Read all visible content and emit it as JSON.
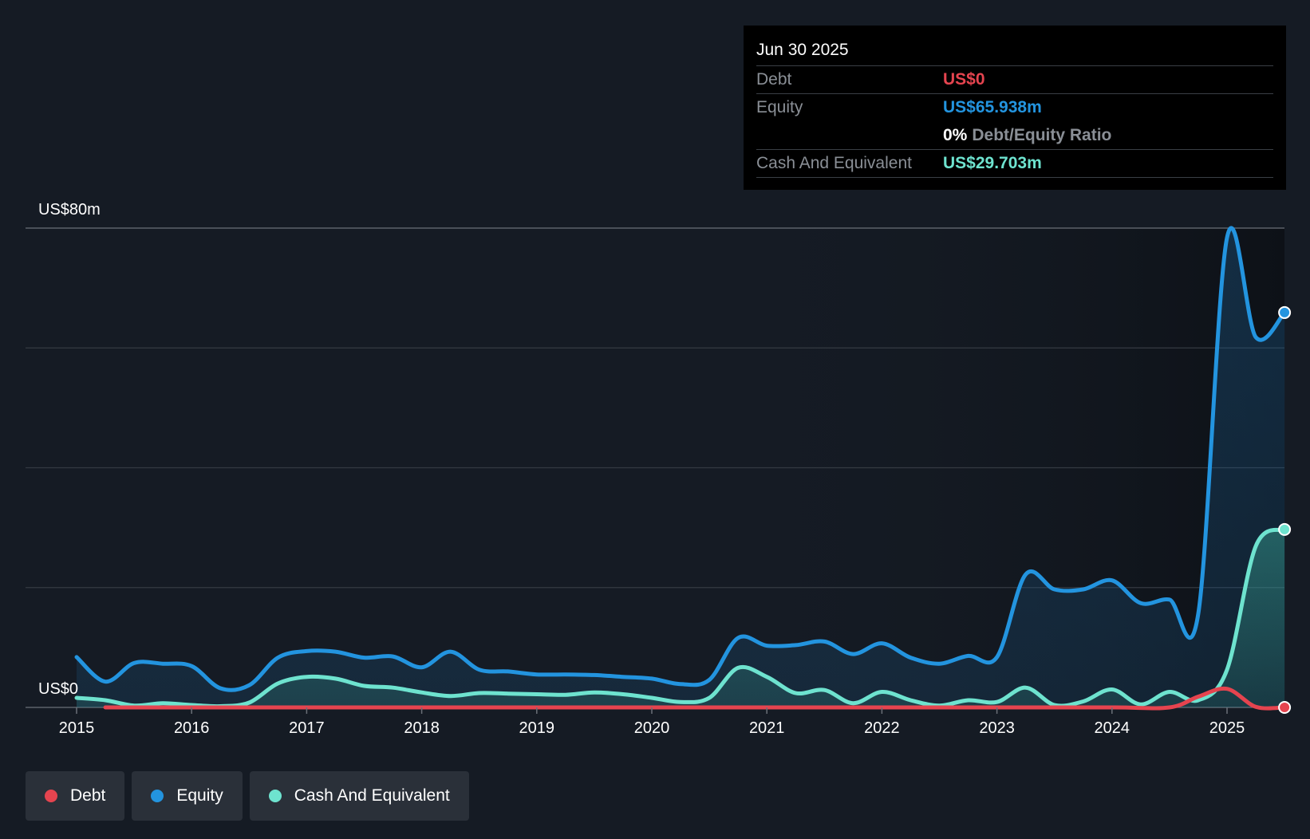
{
  "tooltip": {
    "date": "Jun 30 2025",
    "debt_label": "Debt",
    "debt_value": "US$0",
    "equity_label": "Equity",
    "equity_value": "US$65.938m",
    "ratio_value": "0%",
    "ratio_label": "Debt/Equity Ratio",
    "cash_label": "Cash And Equivalent",
    "cash_value": "US$29.703m"
  },
  "legend": {
    "items": [
      {
        "label": "Debt",
        "color": "#e5444f"
      },
      {
        "label": "Equity",
        "color": "#2394df"
      },
      {
        "label": "Cash And Equivalent",
        "color": "#6ee3cf"
      }
    ]
  },
  "chart_data": {
    "type": "area",
    "title": "",
    "xlabel": "",
    "ylabel": "",
    "y_top_label": "US$80m",
    "y_bottom_label": "US$0",
    "ylim": [
      0,
      80
    ],
    "xlim": [
      2014.92,
      2025.5
    ],
    "x_ticks": [
      "2015",
      "2016",
      "2017",
      "2018",
      "2019",
      "2020",
      "2021",
      "2022",
      "2023",
      "2024",
      "2025"
    ],
    "grid": true,
    "colors": {
      "Debt": "#e5444f",
      "Equity": "#2394df",
      "Cash And Equivalent": "#6ee3cf"
    },
    "series": [
      {
        "name": "Equity",
        "points": [
          [
            2015.0,
            8.4
          ],
          [
            2015.25,
            4.3
          ],
          [
            2015.5,
            7.4
          ],
          [
            2015.75,
            7.3
          ],
          [
            2016.0,
            6.9
          ],
          [
            2016.25,
            3.2
          ],
          [
            2016.5,
            3.7
          ],
          [
            2016.75,
            8.3
          ],
          [
            2017.0,
            9.4
          ],
          [
            2017.25,
            9.3
          ],
          [
            2017.5,
            8.3
          ],
          [
            2017.75,
            8.5
          ],
          [
            2018.0,
            6.7
          ],
          [
            2018.25,
            9.3
          ],
          [
            2018.5,
            6.3
          ],
          [
            2018.75,
            6.0
          ],
          [
            2019.0,
            5.5
          ],
          [
            2019.25,
            5.5
          ],
          [
            2019.5,
            5.4
          ],
          [
            2019.75,
            5.1
          ],
          [
            2020.0,
            4.8
          ],
          [
            2020.25,
            3.9
          ],
          [
            2020.5,
            4.6
          ],
          [
            2020.75,
            11.6
          ],
          [
            2021.0,
            10.3
          ],
          [
            2021.25,
            10.4
          ],
          [
            2021.5,
            11.0
          ],
          [
            2021.75,
            8.9
          ],
          [
            2022.0,
            10.7
          ],
          [
            2022.25,
            8.3
          ],
          [
            2022.5,
            7.3
          ],
          [
            2022.75,
            8.6
          ],
          [
            2023.0,
            8.4
          ],
          [
            2023.25,
            22.2
          ],
          [
            2023.5,
            19.7
          ],
          [
            2023.75,
            19.7
          ],
          [
            2024.0,
            21.2
          ],
          [
            2024.25,
            17.4
          ],
          [
            2024.5,
            18.0
          ],
          [
            2024.75,
            15.6
          ],
          [
            2025.0,
            78.4
          ],
          [
            2025.25,
            61.8
          ],
          [
            2025.5,
            65.9
          ]
        ]
      },
      {
        "name": "Cash And Equivalent",
        "points": [
          [
            2015.0,
            1.6
          ],
          [
            2015.25,
            1.2
          ],
          [
            2015.5,
            0.3
          ],
          [
            2015.75,
            0.7
          ],
          [
            2016.0,
            0.4
          ],
          [
            2016.25,
            0.2
          ],
          [
            2016.5,
            0.8
          ],
          [
            2016.75,
            4.0
          ],
          [
            2017.0,
            5.1
          ],
          [
            2017.25,
            4.8
          ],
          [
            2017.5,
            3.6
          ],
          [
            2017.75,
            3.3
          ],
          [
            2018.0,
            2.5
          ],
          [
            2018.25,
            1.9
          ],
          [
            2018.5,
            2.4
          ],
          [
            2018.75,
            2.3
          ],
          [
            2019.0,
            2.2
          ],
          [
            2019.25,
            2.1
          ],
          [
            2019.5,
            2.5
          ],
          [
            2019.75,
            2.2
          ],
          [
            2020.0,
            1.6
          ],
          [
            2020.25,
            0.9
          ],
          [
            2020.5,
            1.6
          ],
          [
            2020.75,
            6.6
          ],
          [
            2021.0,
            5.1
          ],
          [
            2021.25,
            2.4
          ],
          [
            2021.5,
            2.9
          ],
          [
            2021.75,
            0.7
          ],
          [
            2022.0,
            2.6
          ],
          [
            2022.25,
            1.2
          ],
          [
            2022.5,
            0.3
          ],
          [
            2022.75,
            1.2
          ],
          [
            2023.0,
            0.9
          ],
          [
            2023.25,
            3.3
          ],
          [
            2023.5,
            0.4
          ],
          [
            2023.75,
            1.0
          ],
          [
            2024.0,
            3.0
          ],
          [
            2024.25,
            0.5
          ],
          [
            2024.5,
            2.6
          ],
          [
            2024.75,
            1.2
          ],
          [
            2025.0,
            6.3
          ],
          [
            2025.25,
            26.9
          ],
          [
            2025.5,
            29.7
          ]
        ]
      },
      {
        "name": "Debt",
        "points": [
          [
            2015.25,
            0
          ],
          [
            2015.5,
            0
          ],
          [
            2016.0,
            0
          ],
          [
            2017.0,
            0
          ],
          [
            2018.0,
            0
          ],
          [
            2019.0,
            0
          ],
          [
            2020.0,
            0
          ],
          [
            2021.0,
            0
          ],
          [
            2022.0,
            0
          ],
          [
            2023.0,
            0
          ],
          [
            2024.0,
            0
          ],
          [
            2024.5,
            0
          ],
          [
            2024.75,
            1.8
          ],
          [
            2025.0,
            3.1
          ],
          [
            2025.25,
            0.1
          ],
          [
            2025.5,
            0
          ]
        ]
      }
    ]
  }
}
